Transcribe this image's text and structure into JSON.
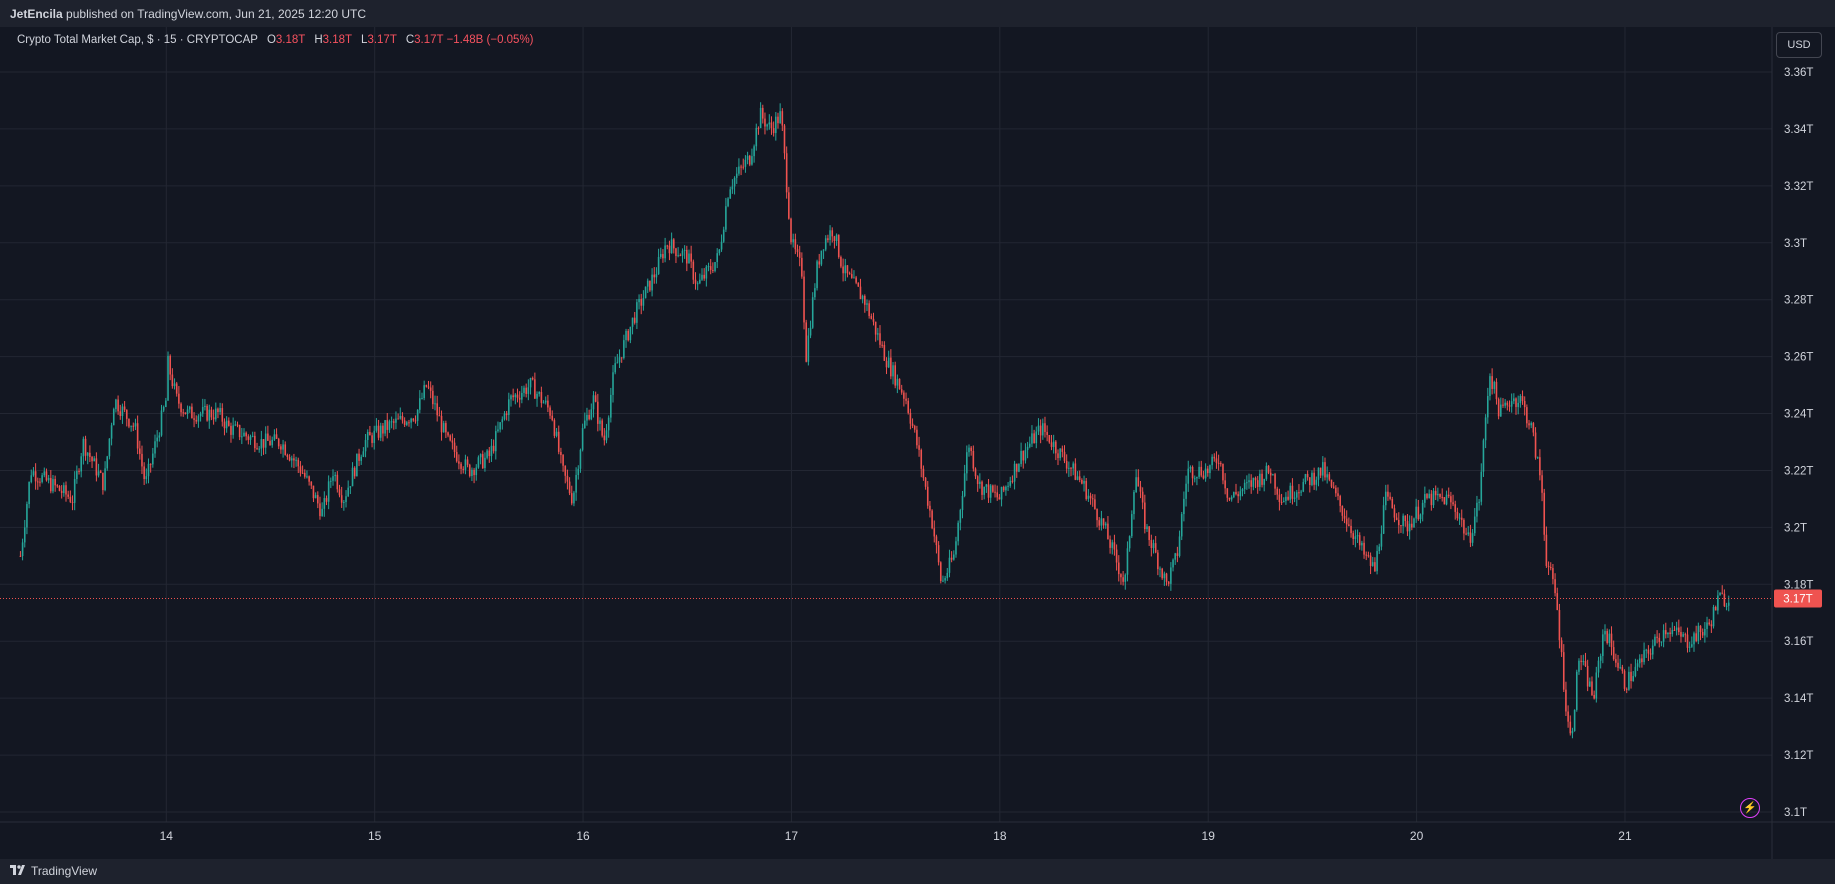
{
  "header": {
    "publisher": "JetEncila",
    "published_text": "published on TradingView.com, Jun 21, 2025 12:20 UTC"
  },
  "legend": {
    "symbol": "Crypto Total Market Cap, $ · 15 · CRYPTOCAP",
    "open_label": "O",
    "open": "3.18T",
    "high_label": "H",
    "high": "3.18T",
    "low_label": "L",
    "low": "3.17T",
    "close_label": "C",
    "close": "3.17T",
    "change": "−1.48B (−0.05%)"
  },
  "currency_button": "USD",
  "footer": {
    "brand": "TradingView"
  },
  "colors": {
    "up": "#26a69a",
    "down": "#ef5350",
    "background": "#131722",
    "grid": "#232733",
    "price_line": "#ef5350"
  },
  "chart_data": {
    "type": "candlestick",
    "interval": "15",
    "y_axis": {
      "ticks": [
        "3.1T",
        "3.12T",
        "3.14T",
        "3.16T",
        "3.18T",
        "3.2T",
        "3.22T",
        "3.24T",
        "3.26T",
        "3.28T",
        "3.3T",
        "3.32T",
        "3.34T",
        "3.36T"
      ],
      "range": [
        3.1,
        3.36
      ],
      "unit": "T"
    },
    "x_axis": {
      "ticks": [
        "14",
        "15",
        "16",
        "17",
        "18",
        "19",
        "20",
        "21"
      ],
      "range": [
        13.25,
        21.6
      ]
    },
    "last_price": 3.175,
    "last_price_label": "3.17T",
    "close_path": [
      [
        13.3,
        3.19
      ],
      [
        13.35,
        3.22
      ],
      [
        13.45,
        3.215
      ],
      [
        13.55,
        3.21
      ],
      [
        13.6,
        3.23
      ],
      [
        13.7,
        3.215
      ],
      [
        13.75,
        3.245
      ],
      [
        13.85,
        3.235
      ],
      [
        13.9,
        3.215
      ],
      [
        14.0,
        3.245
      ],
      [
        14.0,
        3.26
      ],
      [
        14.05,
        3.245
      ],
      [
        14.1,
        3.24
      ],
      [
        14.25,
        3.24
      ],
      [
        14.3,
        3.235
      ],
      [
        14.45,
        3.23
      ],
      [
        14.55,
        3.23
      ],
      [
        14.65,
        3.22
      ],
      [
        14.75,
        3.205
      ],
      [
        14.8,
        3.22
      ],
      [
        14.85,
        3.21
      ],
      [
        14.95,
        3.23
      ],
      [
        15.05,
        3.235
      ],
      [
        15.2,
        3.24
      ],
      [
        15.25,
        3.25
      ],
      [
        15.35,
        3.23
      ],
      [
        15.45,
        3.22
      ],
      [
        15.55,
        3.225
      ],
      [
        15.65,
        3.245
      ],
      [
        15.75,
        3.25
      ],
      [
        15.85,
        3.24
      ],
      [
        15.9,
        3.22
      ],
      [
        15.95,
        3.21
      ],
      [
        16.0,
        3.235
      ],
      [
        16.05,
        3.245
      ],
      [
        16.1,
        3.23
      ],
      [
        16.15,
        3.255
      ],
      [
        16.25,
        3.275
      ],
      [
        16.35,
        3.29
      ],
      [
        16.4,
        3.3
      ],
      [
        16.5,
        3.295
      ],
      [
        16.55,
        3.285
      ],
      [
        16.65,
        3.295
      ],
      [
        16.7,
        3.32
      ],
      [
        16.8,
        3.33
      ],
      [
        16.85,
        3.345
      ],
      [
        16.9,
        3.34
      ],
      [
        16.95,
        3.345
      ],
      [
        17.0,
        3.3
      ],
      [
        17.05,
        3.29
      ],
      [
        17.07,
        3.26
      ],
      [
        17.12,
        3.29
      ],
      [
        17.15,
        3.3
      ],
      [
        17.2,
        3.305
      ],
      [
        17.25,
        3.29
      ],
      [
        17.35,
        3.28
      ],
      [
        17.45,
        3.26
      ],
      [
        17.55,
        3.245
      ],
      [
        17.6,
        3.23
      ],
      [
        17.68,
        3.2
      ],
      [
        17.72,
        3.18
      ],
      [
        17.78,
        3.19
      ],
      [
        17.85,
        3.23
      ],
      [
        17.9,
        3.215
      ],
      [
        18.0,
        3.21
      ],
      [
        18.1,
        3.225
      ],
      [
        18.2,
        3.235
      ],
      [
        18.3,
        3.225
      ],
      [
        18.4,
        3.215
      ],
      [
        18.5,
        3.2
      ],
      [
        18.55,
        3.19
      ],
      [
        18.6,
        3.18
      ],
      [
        18.65,
        3.22
      ],
      [
        18.7,
        3.2
      ],
      [
        18.8,
        3.18
      ],
      [
        18.85,
        3.19
      ],
      [
        18.9,
        3.22
      ],
      [
        19.0,
        3.22
      ],
      [
        19.05,
        3.225
      ],
      [
        19.1,
        3.21
      ],
      [
        19.2,
        3.215
      ],
      [
        19.3,
        3.22
      ],
      [
        19.35,
        3.21
      ],
      [
        19.45,
        3.215
      ],
      [
        19.55,
        3.22
      ],
      [
        19.65,
        3.205
      ],
      [
        19.75,
        3.19
      ],
      [
        19.8,
        3.185
      ],
      [
        19.85,
        3.21
      ],
      [
        19.95,
        3.2
      ],
      [
        20.05,
        3.21
      ],
      [
        20.15,
        3.21
      ],
      [
        20.2,
        3.205
      ],
      [
        20.25,
        3.195
      ],
      [
        20.3,
        3.21
      ],
      [
        20.35,
        3.255
      ],
      [
        20.4,
        3.24
      ],
      [
        20.45,
        3.245
      ],
      [
        20.5,
        3.245
      ],
      [
        20.55,
        3.235
      ],
      [
        20.6,
        3.215
      ],
      [
        20.62,
        3.19
      ],
      [
        20.67,
        3.175
      ],
      [
        20.72,
        3.135
      ],
      [
        20.74,
        3.125
      ],
      [
        20.78,
        3.155
      ],
      [
        20.85,
        3.14
      ],
      [
        20.9,
        3.165
      ],
      [
        20.95,
        3.155
      ],
      [
        21.0,
        3.145
      ],
      [
        21.05,
        3.15
      ],
      [
        21.1,
        3.155
      ],
      [
        21.2,
        3.165
      ],
      [
        21.3,
        3.16
      ],
      [
        21.4,
        3.165
      ],
      [
        21.45,
        3.175
      ],
      [
        21.5,
        3.175
      ]
    ]
  }
}
